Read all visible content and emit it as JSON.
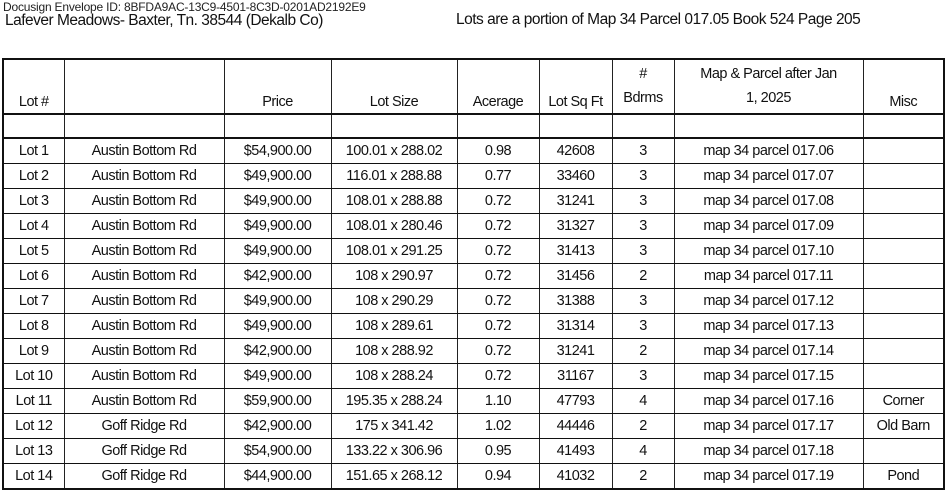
{
  "envelope_id": "Docusign Envelope ID: 8BFDA9AC-13C9-4501-8C3D-0201AD2192E9",
  "title": "Lafever Meadows- Baxter, Tn. 38544  (Dekalb Co)",
  "subtitle": "Lots are a portion of Map 34  Parcel 017.05 Book 524 Page 205",
  "table": {
    "headers": [
      "Lot #",
      "",
      "Price",
      "Lot Size",
      "Acerage",
      "Lot Sq Ft",
      "# Bdrms",
      "Map & Parcel after    Jan 1, 2025",
      "Misc"
    ],
    "header_lines": {
      "bdrms": [
        "#",
        "Bdrms"
      ],
      "map": [
        "Map & Parcel after    Jan",
        "1, 2025"
      ]
    },
    "rows": [
      [
        "Lot 1",
        "Austin Bottom Rd",
        "$54,900.00",
        "100.01 x 288.02",
        "0.98",
        "42608",
        "3",
        "map 34 parcel 017.06",
        ""
      ],
      [
        "Lot 2",
        "Austin Bottom Rd",
        "$49,900.00",
        "116.01 x 288.88",
        "0.77",
        "33460",
        "3",
        "map 34 parcel 017.07",
        ""
      ],
      [
        "Lot 3",
        "Austin Bottom Rd",
        "$49,900.00",
        "108.01 x 288.88",
        "0.72",
        "31241",
        "3",
        "map 34 parcel 017.08",
        ""
      ],
      [
        "Lot 4",
        "Austin Bottom Rd",
        "$49,900.00",
        "108.01 x 280.46",
        "0.72",
        "31327",
        "3",
        "map 34 parcel 017.09",
        ""
      ],
      [
        "Lot 5",
        "Austin Bottom Rd",
        "$49,900.00",
        "108.01 x 291.25",
        "0.72",
        "31413",
        "3",
        "map 34 parcel 017.10",
        ""
      ],
      [
        "Lot 6",
        "Austin Bottom Rd",
        "$42,900.00",
        "108 x 290.97",
        "0.72",
        "31456",
        "2",
        "map 34 parcel 017.11",
        ""
      ],
      [
        "Lot 7",
        "Austin Bottom Rd",
        "$49,900.00",
        "108 x 290.29",
        "0.72",
        "31388",
        "3",
        "map 34 parcel 017.12",
        ""
      ],
      [
        "Lot 8",
        "Austin Bottom Rd",
        "$49,900.00",
        "108 x 289.61",
        "0.72",
        "31314",
        "3",
        "map 34 parcel 017.13",
        ""
      ],
      [
        "Lot 9",
        "Austin Bottom Rd",
        "$42,900.00",
        "108 x 288.92",
        "0.72",
        "31241",
        "2",
        "map 34 parcel 017.14",
        ""
      ],
      [
        "Lot 10",
        "Austin Bottom Rd",
        "$49,900.00",
        "108 x 288.24",
        "0.72",
        "31167",
        "3",
        "map 34 parcel 017.15",
        ""
      ],
      [
        "Lot 11",
        "Austin Bottom Rd",
        "$59,900.00",
        "195.35 x 288.24",
        "1.10",
        "47793",
        "4",
        "map 34 parcel 017.16",
        "Corner"
      ],
      [
        "Lot 12",
        "Goff Ridge Rd",
        "$42,900.00",
        "175 x 341.42",
        "1.02",
        "44446",
        "2",
        "map 34 parcel 017.17",
        "Old Barn"
      ],
      [
        "Lot 13",
        "Goff Ridge Rd",
        "$54,900.00",
        "133.22 x 306.96",
        "0.95",
        "41493",
        "4",
        "map 34 parcel 017.18",
        ""
      ],
      [
        "Lot 14",
        "Goff Ridge Rd",
        "$44,900.00",
        "151.65 x 268.12",
        "0.94",
        "41032",
        "2",
        "map 34 parcel 017.19",
        "Pond"
      ]
    ]
  }
}
